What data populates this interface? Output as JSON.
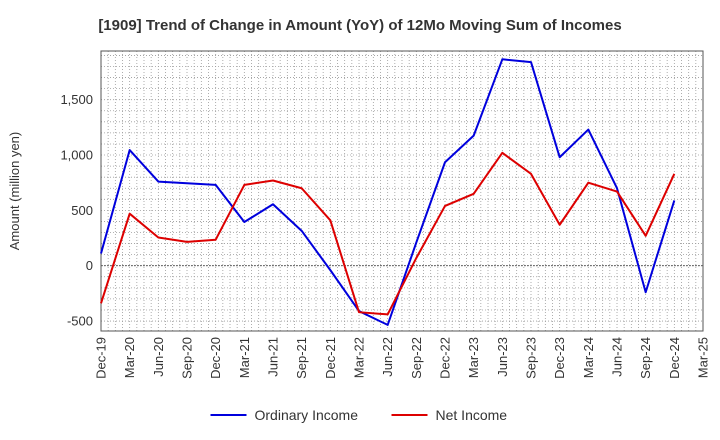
{
  "chart_data": {
    "type": "line",
    "title": "[1909]  Trend of Change in Amount (YoY) of 12Mo Moving Sum of Incomes",
    "ylabel": "Amount (million yen)",
    "xlabel": "",
    "ylim": [
      -590,
      1940
    ],
    "yticks": [
      -500,
      0,
      500,
      1000,
      1500
    ],
    "ytick_labels": [
      "-500",
      "0",
      "500",
      "1,000",
      "1,500"
    ],
    "x": [
      "Dec-19",
      "Mar-20",
      "Jun-20",
      "Sep-20",
      "Dec-20",
      "Mar-21",
      "Jun-21",
      "Sep-21",
      "Dec-21",
      "Mar-22",
      "Jun-22",
      "Sep-22",
      "Dec-22",
      "Mar-23",
      "Jun-23",
      "Sep-23",
      "Dec-23",
      "Mar-24",
      "Jun-24",
      "Sep-24",
      "Dec-24",
      "Mar-25"
    ],
    "grid": true,
    "legend_position": "bottom-center",
    "series": [
      {
        "name": "Ordinary Income",
        "color": "#0000dd",
        "values": [
          110,
          1045,
          760,
          745,
          730,
          395,
          555,
          315,
          -40,
          -410,
          -535,
          210,
          935,
          1175,
          1865,
          1840,
          980,
          1230,
          700,
          -240,
          590,
          null
        ]
      },
      {
        "name": "Net Income",
        "color": "#dd0000",
        "values": [
          -340,
          470,
          255,
          215,
          235,
          730,
          770,
          700,
          410,
          -420,
          -440,
          70,
          540,
          650,
          1020,
          830,
          370,
          750,
          670,
          270,
          830,
          null
        ]
      }
    ]
  }
}
